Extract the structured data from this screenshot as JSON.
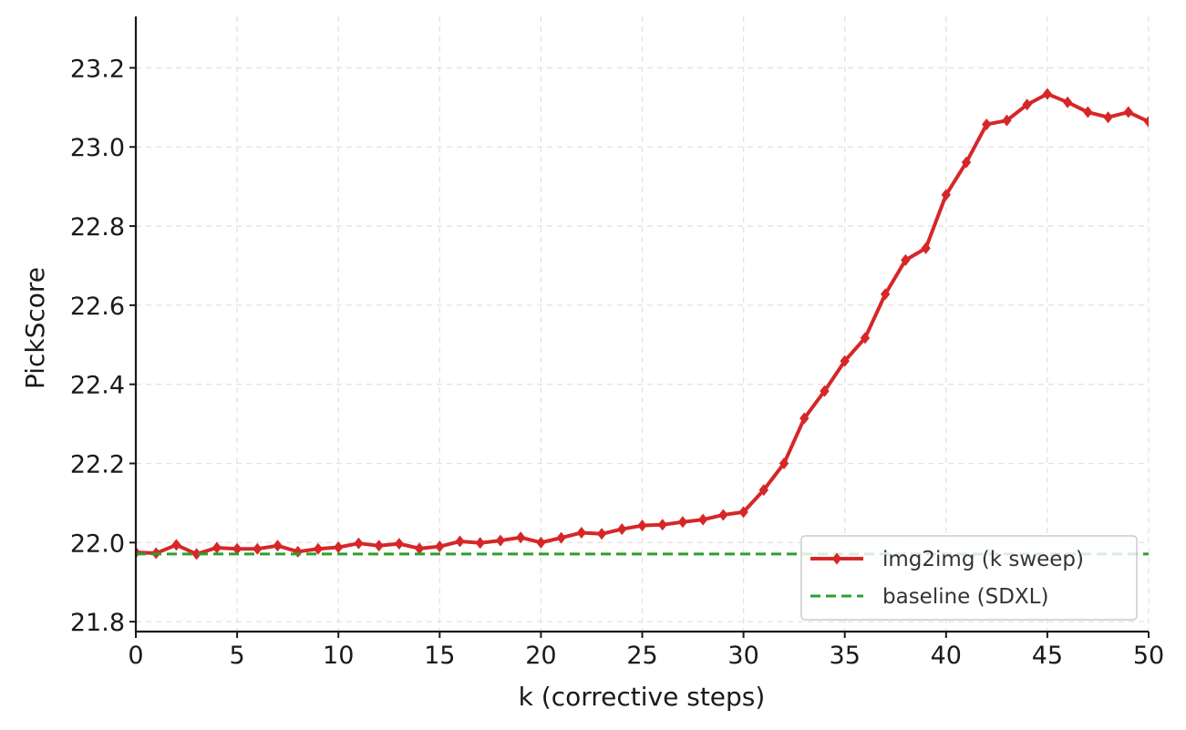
{
  "chart_data": {
    "type": "line",
    "title": "",
    "xlabel": "k (corrective steps)",
    "ylabel": "PickScore",
    "xlim": [
      0,
      50
    ],
    "ylim": [
      21.775,
      23.33
    ],
    "xticks": [
      0,
      5,
      10,
      15,
      20,
      25,
      30,
      35,
      40,
      45,
      50
    ],
    "yticks": [
      21.8,
      22.0,
      22.2,
      22.4,
      22.6,
      22.8,
      23.0,
      23.2
    ],
    "grid": true,
    "legend_position": "lower-right",
    "series": [
      {
        "name": "img2img (k sweep)",
        "color": "#d62728",
        "marker": "diamond",
        "style": "solid",
        "x": [
          0,
          1,
          2,
          3,
          4,
          5,
          6,
          7,
          8,
          9,
          10,
          11,
          12,
          13,
          14,
          15,
          16,
          17,
          18,
          19,
          20,
          21,
          22,
          23,
          24,
          25,
          26,
          27,
          28,
          29,
          30,
          31,
          32,
          33,
          34,
          35,
          36,
          37,
          38,
          39,
          40,
          41,
          42,
          43,
          44,
          45,
          46,
          47,
          48,
          49,
          50
        ],
        "y": [
          21.975,
          21.973,
          21.994,
          21.971,
          21.987,
          21.984,
          21.984,
          21.992,
          21.977,
          21.984,
          21.988,
          21.998,
          21.992,
          21.997,
          21.985,
          21.99,
          22.003,
          21.999,
          22.005,
          22.013,
          22.0,
          22.012,
          22.025,
          22.022,
          22.034,
          22.043,
          22.045,
          22.052,
          22.058,
          22.07,
          22.077,
          22.133,
          22.2,
          22.314,
          22.383,
          22.459,
          22.517,
          22.628,
          22.714,
          22.744,
          22.879,
          22.961,
          23.057,
          23.067,
          23.107,
          23.134,
          23.113,
          23.088,
          23.075,
          23.088,
          23.064
        ]
      },
      {
        "name": "baseline (SDXL)",
        "color": "#2ca02c",
        "style": "dashed",
        "x": [
          0,
          50
        ],
        "y": [
          21.971,
          21.971
        ]
      }
    ]
  }
}
